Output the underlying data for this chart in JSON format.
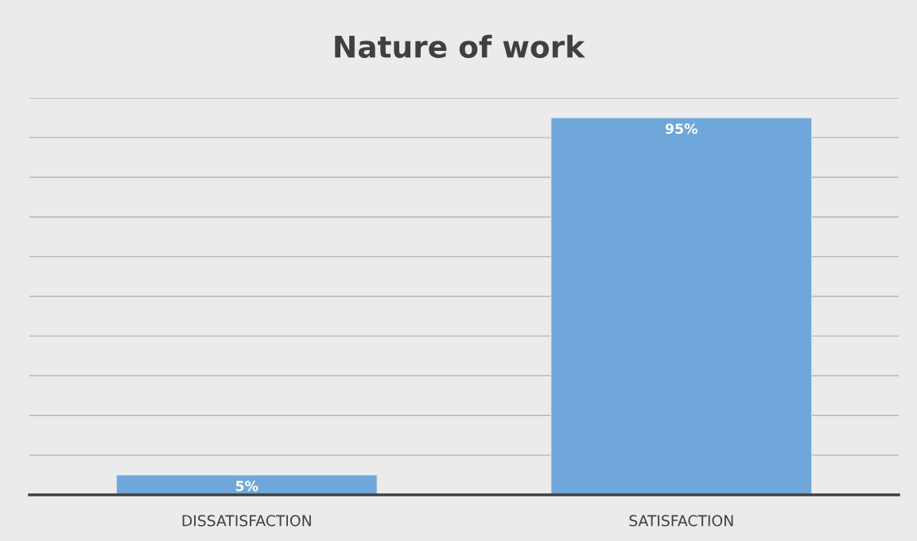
{
  "chart_data": {
    "type": "bar",
    "title": "Nature of work",
    "categories": [
      "DISSATISFACTION",
      "SATISFACTION"
    ],
    "values": [
      5,
      95
    ],
    "value_labels": [
      "5%",
      "95%"
    ],
    "color": "#70a7da",
    "ylim": [
      0,
      100
    ],
    "yticks": [
      {
        "value": 0,
        "label": null
      },
      {
        "value": 10,
        "label": null
      },
      {
        "value": 20,
        "label": null
      },
      {
        "value": 30,
        "label": null
      },
      {
        "value": 40,
        "label": null
      },
      {
        "value": 50,
        "label": null
      },
      {
        "value": 60,
        "label": null
      },
      {
        "value": 70,
        "label": null
      },
      {
        "value": 80,
        "label": null
      },
      {
        "value": 90,
        "label": null
      },
      {
        "value": 100,
        "label": null
      }
    ],
    "grid": "y",
    "tick_labels": "x"
  }
}
